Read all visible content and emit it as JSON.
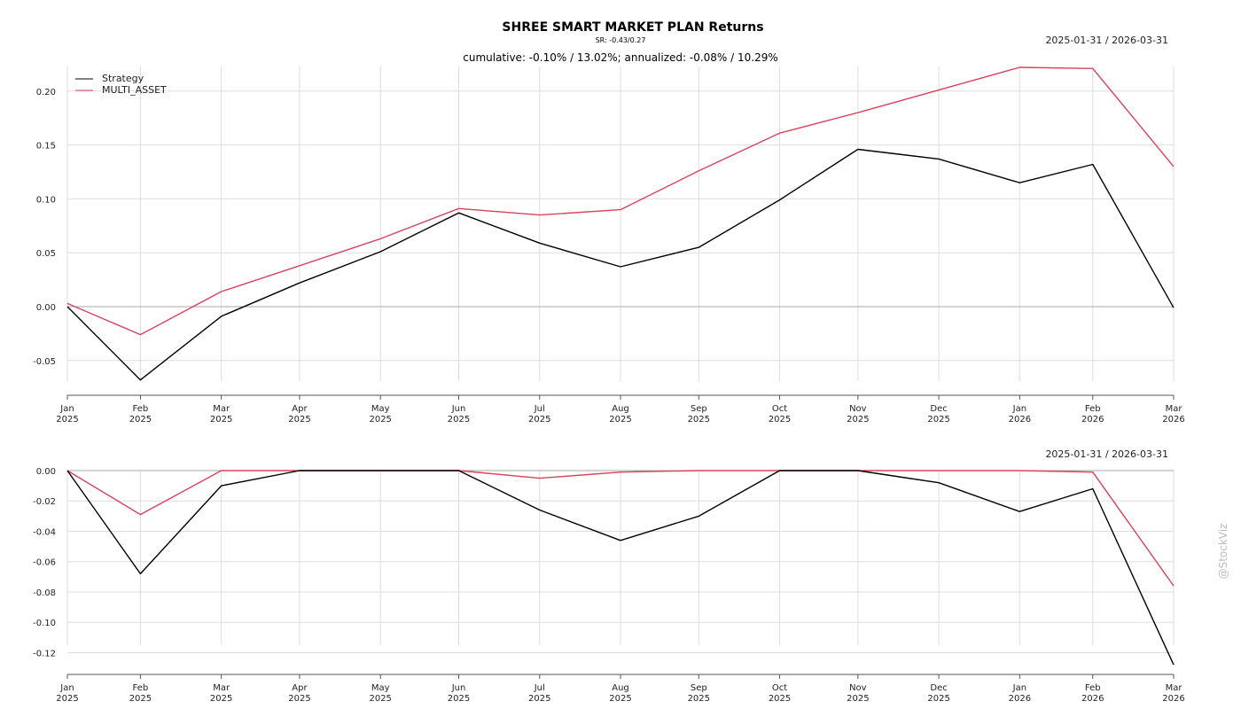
{
  "header": {
    "title": "SHREE SMART MARKET PLAN Returns",
    "subtitle": "SR: -0.43/0.27",
    "summary": "cumulative: -0.10% / 13.02%; annualized: -0.08% / 10.29%"
  },
  "watermark": "@StockViz",
  "colors": {
    "strategy": "#000000",
    "multi_asset": "#d9435b",
    "grid": "#dddddd",
    "zero_line": "#aaaaaa"
  },
  "chart_data": [
    {
      "type": "line",
      "date_range": "2025-01-31 / 2026-03-31",
      "x": [
        "2025-01-31",
        "2025-02-28",
        "2025-03-31",
        "2025-04-30",
        "2025-05-31",
        "2025-06-30",
        "2025-07-31",
        "2025-08-31",
        "2025-09-30",
        "2025-10-31",
        "2025-11-30",
        "2025-12-31",
        "2026-01-31",
        "2026-02-28",
        "2026-03-31"
      ],
      "x_tick_labels": [
        [
          "Jan",
          "2025"
        ],
        [
          "Feb",
          "2025"
        ],
        [
          "Mar",
          "2025"
        ],
        [
          "Apr",
          "2025"
        ],
        [
          "May",
          "2025"
        ],
        [
          "Jun",
          "2025"
        ],
        [
          "Jul",
          "2025"
        ],
        [
          "Aug",
          "2025"
        ],
        [
          "Sep",
          "2025"
        ],
        [
          "Oct",
          "2025"
        ],
        [
          "Nov",
          "2025"
        ],
        [
          "Dec",
          "2025"
        ],
        [
          "Jan",
          "2026"
        ],
        [
          "Feb",
          "2026"
        ],
        [
          "Mar",
          "2026"
        ]
      ],
      "y_ticks": [
        "-0.05",
        "0.00",
        "0.05",
        "0.10",
        "0.15",
        "0.20"
      ],
      "ylim": [
        -0.07,
        0.222
      ],
      "grid": true,
      "legend_position": "top-left",
      "series": [
        {
          "name": "Strategy",
          "values": [
            0.0,
            -0.068,
            -0.009,
            0.022,
            0.051,
            0.087,
            0.059,
            0.037,
            0.055,
            0.099,
            0.146,
            0.137,
            0.115,
            0.132,
            -0.001
          ]
        },
        {
          "name": "MULTI_ASSET",
          "values": [
            0.003,
            -0.026,
            0.014,
            0.038,
            0.063,
            0.091,
            0.085,
            0.09,
            0.126,
            0.161,
            0.18,
            0.201,
            0.222,
            0.221,
            0.13
          ]
        }
      ]
    },
    {
      "type": "line",
      "date_range": "2025-01-31 / 2026-03-31",
      "x": [
        "2025-01-31",
        "2025-02-28",
        "2025-03-31",
        "2025-04-30",
        "2025-05-31",
        "2025-06-30",
        "2025-07-31",
        "2025-08-31",
        "2025-09-30",
        "2025-10-31",
        "2025-11-30",
        "2025-12-31",
        "2026-01-31",
        "2026-02-28",
        "2026-03-31"
      ],
      "x_tick_labels": [
        [
          "Jan",
          "2025"
        ],
        [
          "Feb",
          "2025"
        ],
        [
          "Mar",
          "2025"
        ],
        [
          "Apr",
          "2025"
        ],
        [
          "May",
          "2025"
        ],
        [
          "Jun",
          "2025"
        ],
        [
          "Jul",
          "2025"
        ],
        [
          "Aug",
          "2025"
        ],
        [
          "Sep",
          "2025"
        ],
        [
          "Oct",
          "2025"
        ],
        [
          "Nov",
          "2025"
        ],
        [
          "Dec",
          "2025"
        ],
        [
          "Jan",
          "2026"
        ],
        [
          "Feb",
          "2026"
        ],
        [
          "Mar",
          "2026"
        ]
      ],
      "y_ticks": [
        "-0.12",
        "-0.10",
        "-0.08",
        "-0.06",
        "-0.04",
        "-0.02",
        "0.00"
      ],
      "ylim": [
        -0.128,
        0.0
      ],
      "grid": true,
      "series": [
        {
          "name": "Strategy",
          "values": [
            0.0,
            -0.068,
            -0.01,
            0.0,
            0.0,
            0.0,
            -0.026,
            -0.046,
            -0.03,
            0.0,
            0.0,
            -0.008,
            -0.027,
            -0.012,
            -0.128
          ]
        },
        {
          "name": "MULTI_ASSET",
          "values": [
            0.0,
            -0.029,
            0.0,
            0.0,
            0.0,
            0.0,
            -0.005,
            -0.001,
            0.0,
            0.0,
            0.0,
            0.0,
            0.0,
            -0.001,
            -0.076
          ]
        }
      ]
    }
  ]
}
